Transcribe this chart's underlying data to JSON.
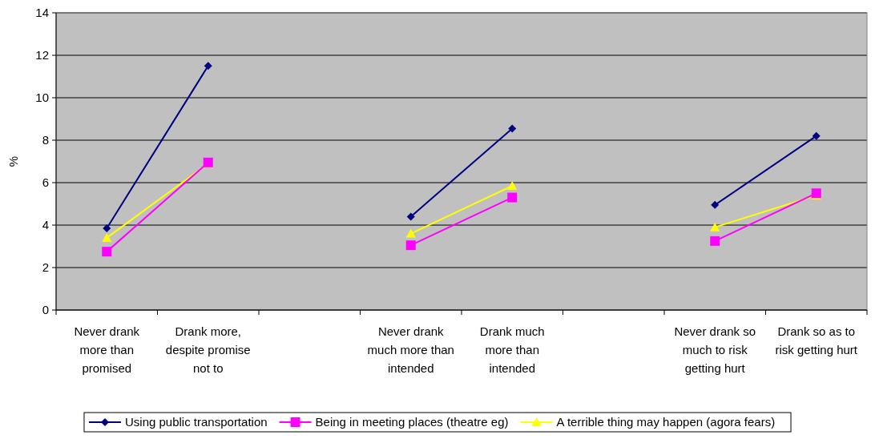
{
  "chart_data": {
    "type": "line",
    "ylabel": "%",
    "categories": [
      "Never drank more than promised",
      "Drank more, despite promise not to",
      null,
      "Never drank much more than intended",
      "Drank much more than intended",
      null,
      "Never drank so much to risk getting hurt",
      "Drank so as to risk getting hurt"
    ],
    "series": [
      {
        "name": "Using public transportation",
        "color": "#000080",
        "marker": "diamond",
        "values": [
          3.85,
          11.5,
          null,
          4.4,
          8.55,
          null,
          4.95,
          8.2
        ]
      },
      {
        "name": "Being in meeting places (theatre eg)",
        "color": "#ff00ff",
        "marker": "square",
        "values": [
          2.75,
          6.95,
          null,
          3.05,
          5.3,
          null,
          3.25,
          5.5
        ]
      },
      {
        "name": "A terrible thing may happen (agora fears)",
        "color": "#ffff00",
        "marker": "triangle",
        "values": [
          3.4,
          6.9,
          null,
          3.6,
          5.85,
          null,
          3.9,
          5.4
        ]
      }
    ],
    "ylim": [
      0,
      14
    ],
    "yticks": [
      0,
      2,
      4,
      6,
      8,
      10,
      12,
      14
    ],
    "grid": "y",
    "legend": "bottom"
  }
}
